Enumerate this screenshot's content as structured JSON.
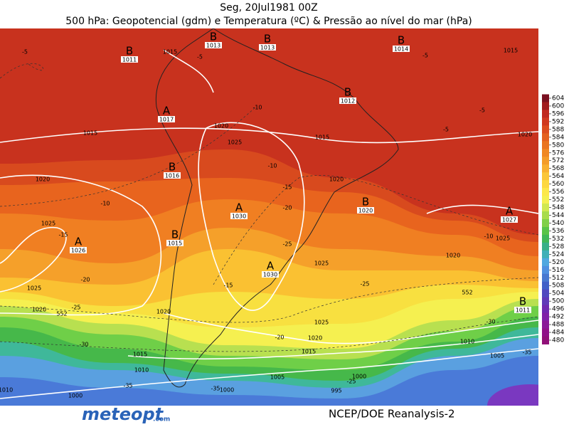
{
  "header": {
    "date": "Seg, 20Jul1981 00Z",
    "title": "500 hPa: Geopotencial (gdm) e Temperatura (ºC) & Pressão ao nível do mar (hPa)"
  },
  "colorbar": {
    "labels": [
      604,
      600,
      596,
      592,
      588,
      584,
      580,
      576,
      572,
      568,
      564,
      560,
      556,
      552,
      548,
      544,
      540,
      536,
      532,
      528,
      524,
      520,
      516,
      512,
      508,
      504,
      500,
      496,
      492,
      488,
      484,
      480
    ],
    "colors": [
      "#7a1020",
      "#a01a1e",
      "#c0281e",
      "#d0381e",
      "#dc4c1e",
      "#e4601e",
      "#ea7420",
      "#f08822",
      "#f49c28",
      "#f8b030",
      "#fbc638",
      "#fdd840",
      "#fce84a",
      "#f4f050",
      "#d0e850",
      "#a8dc4c",
      "#80d048",
      "#58c448",
      "#40b858",
      "#38b088",
      "#40b0b8",
      "#50a8e0",
      "#5090e0",
      "#4878d0",
      "#4060c8",
      "#5048c0",
      "#6038b8",
      "#7028b0",
      "#8020a8",
      "#8a1898",
      "#901088",
      "#901078"
    ]
  },
  "centers": [
    {
      "letter": "B",
      "value": 1011
    },
    {
      "letter": "B",
      "value": 1013
    },
    {
      "letter": "B",
      "value": 1013
    },
    {
      "letter": "B",
      "value": 1014
    },
    {
      "letter": "B",
      "value": 1012
    },
    {
      "letter": "A",
      "value": 1017
    },
    {
      "letter": "B",
      "value": 1016
    },
    {
      "letter": "A",
      "value": 1030
    },
    {
      "letter": "B",
      "value": 1020
    },
    {
      "letter": "A",
      "value": 1027
    },
    {
      "letter": "A",
      "value": 1026
    },
    {
      "letter": "B",
      "value": 1015
    },
    {
      "letter": "A",
      "value": 1030
    },
    {
      "letter": "B",
      "value": 1011
    }
  ],
  "isobar_labels": [
    1015,
    1015,
    1020,
    1025,
    1020,
    1025,
    1015,
    1020,
    1025,
    1020,
    1025,
    1020,
    1015,
    1025,
    1020,
    1020,
    1025,
    1020,
    1015,
    1015,
    1010,
    1010,
    1005,
    1005,
    1000,
    1000,
    1000,
    995,
    1010
  ],
  "temperature_labels": [
    -5,
    -5,
    -5,
    -5,
    -5,
    -10,
    -10,
    -10,
    -10,
    -15,
    -15,
    -15,
    -20,
    -20,
    -20,
    -25,
    -25,
    -25,
    -30,
    -30,
    -35,
    -35,
    -35,
    552,
    552,
    -25
  ],
  "footer": {
    "logo": "meteopt",
    "logo_suffix": ".com",
    "credit": "NCEP/DOE Reanalysis-2"
  }
}
